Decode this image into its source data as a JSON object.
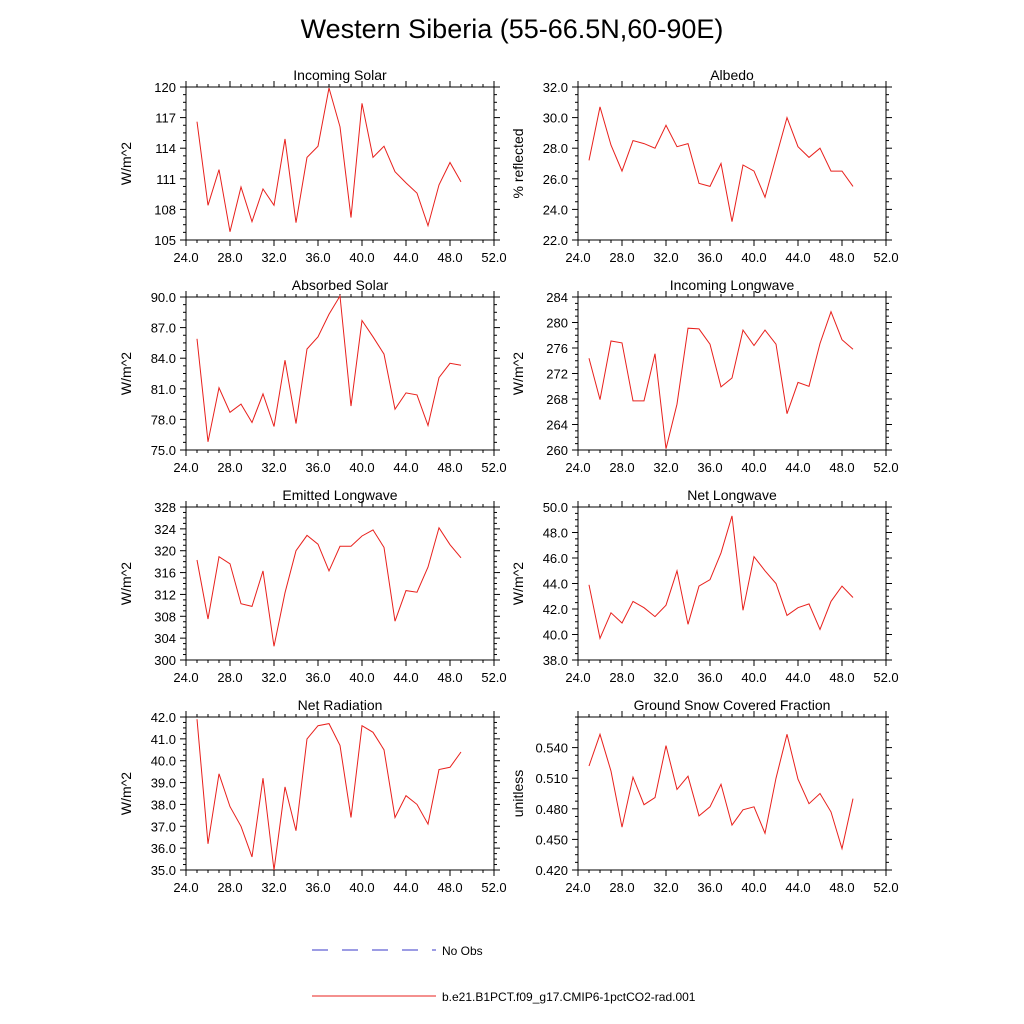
{
  "title": "Western Siberia (55-66.5N,60-90E)",
  "colors": {
    "model": "#e8201c",
    "obs": "#3a3ac8",
    "axis": "#000000"
  },
  "legend": [
    {
      "label": "No Obs",
      "style": "dashed",
      "color": "#3a3ac8"
    },
    {
      "label": "b.e21.B1PCT.f09_g17.CMIP6-1pctCO2-rad.001",
      "style": "solid",
      "color": "#e8201c"
    }
  ],
  "chart_data": [
    {
      "type": "line",
      "title": "Incoming Solar",
      "ylabel": "W/m^2",
      "xlim": [
        24,
        52
      ],
      "ylim": [
        105,
        120
      ],
      "xticks": [
        24,
        28,
        32,
        36,
        40,
        44,
        48,
        52
      ],
      "xtick_labels": [
        "24.0",
        "28.0",
        "32.0",
        "36.0",
        "40.0",
        "44.0",
        "48.0",
        "52.0"
      ],
      "yticks": [
        105,
        108,
        111,
        114,
        117,
        120
      ],
      "ytick_labels": [
        "105",
        "108",
        "111",
        "114",
        "117",
        "120"
      ],
      "series": [
        {
          "name": "b.e21.B1PCT.f09_g17.CMIP6-1pctCO2-rad.001",
          "x": [
            25,
            26,
            27,
            28,
            29,
            30,
            31,
            32,
            33,
            34,
            35,
            36,
            37,
            38,
            39,
            40,
            41,
            42,
            43,
            44,
            45,
            46,
            47,
            48,
            49
          ],
          "y": [
            116.6,
            108.4,
            111.9,
            105.8,
            110.2,
            106.8,
            110.0,
            108.4,
            114.9,
            106.7,
            113.1,
            114.2,
            119.9,
            116.1,
            107.2,
            118.4,
            113.1,
            114.2,
            111.7,
            110.6,
            109.6,
            106.4,
            110.4,
            112.6,
            110.7
          ]
        }
      ]
    },
    {
      "type": "line",
      "title": "Albedo",
      "ylabel": "% reflected",
      "xlim": [
        24,
        52
      ],
      "ylim": [
        22,
        32
      ],
      "xticks": [
        24,
        28,
        32,
        36,
        40,
        44,
        48,
        52
      ],
      "xtick_labels": [
        "24.0",
        "28.0",
        "32.0",
        "36.0",
        "40.0",
        "44.0",
        "48.0",
        "52.0"
      ],
      "yticks": [
        22,
        24,
        26,
        28,
        30,
        32
      ],
      "ytick_labels": [
        "22.0",
        "24.0",
        "26.0",
        "28.0",
        "30.0",
        "32.0"
      ],
      "series": [
        {
          "name": "b.e21.B1PCT.f09_g17.CMIP6-1pctCO2-rad.001",
          "x": [
            25,
            26,
            27,
            28,
            29,
            30,
            31,
            32,
            33,
            34,
            35,
            36,
            37,
            38,
            39,
            40,
            41,
            42,
            43,
            44,
            45,
            46,
            47,
            48,
            49
          ],
          "y": [
            27.2,
            30.7,
            28.2,
            26.5,
            28.5,
            28.3,
            28.0,
            29.5,
            28.1,
            28.3,
            25.7,
            25.5,
            27.0,
            23.2,
            26.9,
            26.5,
            24.8,
            27.4,
            30.0,
            28.1,
            27.4,
            28.0,
            26.5,
            26.5,
            25.5
          ]
        }
      ]
    },
    {
      "type": "line",
      "title": "Absorbed Solar",
      "ylabel": "W/m^2",
      "xlim": [
        24,
        52
      ],
      "ylim": [
        75,
        90
      ],
      "xticks": [
        24,
        28,
        32,
        36,
        40,
        44,
        48,
        52
      ],
      "xtick_labels": [
        "24.0",
        "28.0",
        "32.0",
        "36.0",
        "40.0",
        "44.0",
        "48.0",
        "52.0"
      ],
      "yticks": [
        75,
        78,
        81,
        84,
        87,
        90
      ],
      "ytick_labels": [
        "75.0",
        "78.0",
        "81.0",
        "84.0",
        "87.0",
        "90.0"
      ],
      "series": [
        {
          "name": "b.e21.B1PCT.f09_g17.CMIP6-1pctCO2-rad.001",
          "x": [
            25,
            26,
            27,
            28,
            29,
            30,
            31,
            32,
            33,
            34,
            35,
            36,
            37,
            38,
            39,
            40,
            41,
            42,
            43,
            44,
            45,
            46,
            47,
            48,
            49
          ],
          "y": [
            85.9,
            75.8,
            81.1,
            78.7,
            79.5,
            77.7,
            80.5,
            77.3,
            83.8,
            77.6,
            84.9,
            86.1,
            88.3,
            90.1,
            79.3,
            87.7,
            86.1,
            84.4,
            79.0,
            80.6,
            80.4,
            77.4,
            82.1,
            83.5,
            83.3
          ]
        }
      ]
    },
    {
      "type": "line",
      "title": "Incoming Longwave",
      "ylabel": "W/m^2",
      "xlim": [
        24,
        52
      ],
      "ylim": [
        260,
        284
      ],
      "xticks": [
        24,
        28,
        32,
        36,
        40,
        44,
        48,
        52
      ],
      "xtick_labels": [
        "24.0",
        "28.0",
        "32.0",
        "36.0",
        "40.0",
        "44.0",
        "48.0",
        "52.0"
      ],
      "yticks": [
        260,
        264,
        268,
        272,
        276,
        280,
        284
      ],
      "ytick_labels": [
        "260",
        "264",
        "268",
        "272",
        "276",
        "280",
        "284"
      ],
      "series": [
        {
          "name": "b.e21.B1PCT.f09_g17.CMIP6-1pctCO2-rad.001",
          "x": [
            25,
            26,
            27,
            28,
            29,
            30,
            31,
            32,
            33,
            34,
            35,
            36,
            37,
            38,
            39,
            40,
            41,
            42,
            43,
            44,
            45,
            46,
            47,
            48,
            49
          ],
          "y": [
            274.4,
            267.9,
            277.1,
            276.8,
            267.7,
            267.7,
            275.1,
            260.2,
            267.2,
            279.1,
            279.0,
            276.6,
            269.9,
            271.3,
            278.8,
            276.4,
            278.8,
            276.6,
            265.7,
            270.6,
            270.0,
            276.7,
            281.7,
            277.3,
            275.8
          ]
        }
      ]
    },
    {
      "type": "line",
      "title": "Emitted Longwave",
      "ylabel": "W/m^2",
      "xlim": [
        24,
        52
      ],
      "ylim": [
        300,
        328
      ],
      "xticks": [
        24,
        28,
        32,
        36,
        40,
        44,
        48,
        52
      ],
      "xtick_labels": [
        "24.0",
        "28.0",
        "32.0",
        "36.0",
        "40.0",
        "44.0",
        "48.0",
        "52.0"
      ],
      "yticks": [
        300,
        304,
        308,
        312,
        316,
        320,
        324,
        328
      ],
      "ytick_labels": [
        "300",
        "304",
        "308",
        "312",
        "316",
        "320",
        "324",
        "328"
      ],
      "series": [
        {
          "name": "b.e21.B1PCT.f09_g17.CMIP6-1pctCO2-rad.001",
          "x": [
            25,
            26,
            27,
            28,
            29,
            30,
            31,
            32,
            33,
            34,
            35,
            36,
            37,
            38,
            39,
            40,
            41,
            42,
            43,
            44,
            45,
            46,
            47,
            48,
            49
          ],
          "y": [
            318.3,
            307.5,
            318.9,
            317.6,
            310.3,
            309.8,
            316.3,
            302.5,
            312.3,
            320.0,
            322.8,
            321.2,
            316.3,
            320.8,
            320.8,
            322.7,
            323.8,
            320.6,
            307.1,
            312.7,
            312.4,
            317.0,
            324.2,
            321.1,
            318.7
          ]
        }
      ]
    },
    {
      "type": "line",
      "title": "Net Longwave",
      "ylabel": "W/m^2",
      "xlim": [
        24,
        52
      ],
      "ylim": [
        38,
        50
      ],
      "xticks": [
        24,
        28,
        32,
        36,
        40,
        44,
        48,
        52
      ],
      "xtick_labels": [
        "24.0",
        "28.0",
        "32.0",
        "36.0",
        "40.0",
        "44.0",
        "48.0",
        "52.0"
      ],
      "yticks": [
        38,
        40,
        42,
        44,
        46,
        48,
        50
      ],
      "ytick_labels": [
        "38.0",
        "40.0",
        "42.0",
        "44.0",
        "46.0",
        "48.0",
        "50.0"
      ],
      "series": [
        {
          "name": "b.e21.B1PCT.f09_g17.CMIP6-1pctCO2-rad.001",
          "x": [
            25,
            26,
            27,
            28,
            29,
            30,
            31,
            32,
            33,
            34,
            35,
            36,
            37,
            38,
            39,
            40,
            41,
            42,
            43,
            44,
            45,
            46,
            47,
            48,
            49
          ],
          "y": [
            43.9,
            39.7,
            41.7,
            40.9,
            42.6,
            42.1,
            41.4,
            42.3,
            45.0,
            40.8,
            43.8,
            44.3,
            46.4,
            49.3,
            41.9,
            46.1,
            45.0,
            44.0,
            41.5,
            42.1,
            42.4,
            40.4,
            42.6,
            43.8,
            42.9
          ]
        }
      ]
    },
    {
      "type": "line",
      "title": "Net Radiation",
      "ylabel": "W/m^2",
      "xlim": [
        24,
        52
      ],
      "ylim": [
        35,
        42
      ],
      "xticks": [
        24,
        28,
        32,
        36,
        40,
        44,
        48,
        52
      ],
      "xtick_labels": [
        "24.0",
        "28.0",
        "32.0",
        "36.0",
        "40.0",
        "44.0",
        "48.0",
        "52.0"
      ],
      "yticks": [
        35,
        36,
        37,
        38,
        39,
        40,
        41,
        42
      ],
      "ytick_labels": [
        "35.0",
        "36.0",
        "37.0",
        "38.0",
        "39.0",
        "40.0",
        "41.0",
        "42.0"
      ],
      "series": [
        {
          "name": "b.e21.B1PCT.f09_g17.CMIP6-1pctCO2-rad.001",
          "x": [
            25,
            26,
            27,
            28,
            29,
            30,
            31,
            32,
            33,
            34,
            35,
            36,
            37,
            38,
            39,
            40,
            41,
            42,
            43,
            44,
            45,
            46,
            47,
            48,
            49
          ],
          "y": [
            41.9,
            36.2,
            39.4,
            37.9,
            37.0,
            35.6,
            39.2,
            35.0,
            38.8,
            36.8,
            41.0,
            41.6,
            41.7,
            40.7,
            37.4,
            41.6,
            41.3,
            40.5,
            37.4,
            38.4,
            38.0,
            37.1,
            39.6,
            39.7,
            40.4
          ]
        }
      ]
    },
    {
      "type": "line",
      "title": "Ground Snow Covered Fraction",
      "ylabel": "unitless",
      "xlim": [
        24,
        52
      ],
      "ylim": [
        0.42,
        0.57
      ],
      "xticks": [
        24,
        28,
        32,
        36,
        40,
        44,
        48,
        52
      ],
      "xtick_labels": [
        "24.0",
        "28.0",
        "32.0",
        "36.0",
        "40.0",
        "44.0",
        "48.0",
        "52.0"
      ],
      "yticks": [
        0.42,
        0.45,
        0.48,
        0.51,
        0.54
      ],
      "ytick_labels": [
        "0.420",
        "0.450",
        "0.480",
        "0.510",
        "0.540"
      ],
      "series": [
        {
          "name": "b.e21.B1PCT.f09_g17.CMIP6-1pctCO2-rad.001",
          "x": [
            25,
            26,
            27,
            28,
            29,
            30,
            31,
            32,
            33,
            34,
            35,
            36,
            37,
            38,
            39,
            40,
            41,
            42,
            43,
            44,
            45,
            46,
            47,
            48,
            49
          ],
          "y": [
            0.522,
            0.553,
            0.517,
            0.462,
            0.511,
            0.484,
            0.491,
            0.542,
            0.499,
            0.512,
            0.473,
            0.482,
            0.504,
            0.464,
            0.479,
            0.482,
            0.456,
            0.51,
            0.553,
            0.509,
            0.485,
            0.495,
            0.477,
            0.441,
            0.49
          ]
        }
      ]
    }
  ]
}
